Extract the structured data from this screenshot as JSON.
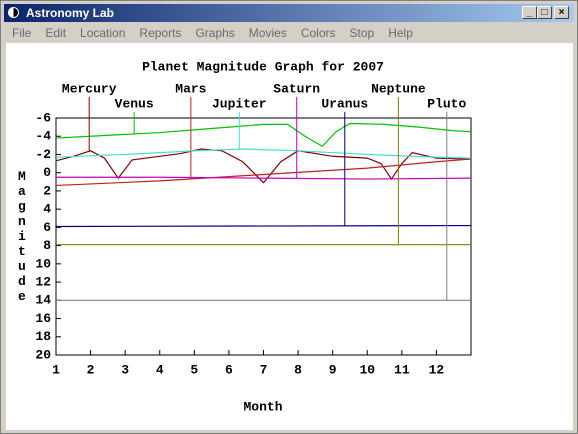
{
  "window": {
    "title": "Astronomy Lab",
    "menu": [
      "File",
      "Edit",
      "Location",
      "Reports",
      "Graphs",
      "Movies",
      "Colors",
      "Stop",
      "Help"
    ]
  },
  "chart_data": {
    "type": "line",
    "title": "Planet Magnitude Graph for 2007",
    "x_label": "Month",
    "y_label": "Magnitude",
    "xlim": [
      1,
      13
    ],
    "xticks": [
      1,
      2,
      3,
      4,
      5,
      6,
      7,
      8,
      9,
      10,
      11,
      12
    ],
    "ylim": [
      20,
      -6
    ],
    "yticks": [
      -6,
      -4,
      -2,
      0,
      2,
      4,
      6,
      8,
      10,
      12,
      14,
      16,
      18,
      20
    ],
    "series": [
      {
        "name": "Mercury",
        "color": "#800000",
        "marker_x": 1.96,
        "x": [
          1,
          1.5,
          2,
          2.4,
          2.8,
          3.2,
          4,
          4.6,
          5.2,
          5.8,
          6.4,
          7,
          7.5,
          8,
          9,
          10,
          10.4,
          10.7,
          11,
          11.3,
          12,
          13
        ],
        "values": [
          -1.3,
          -1.8,
          -2.4,
          -1.6,
          0.6,
          -1.4,
          -1.8,
          -2.1,
          -2.6,
          -2.4,
          -1.2,
          1.1,
          -1.2,
          -2.4,
          -1.8,
          -1.6,
          -1.0,
          0.7,
          -1.0,
          -2.2,
          -1.6,
          -1.5
        ]
      },
      {
        "name": "Venus",
        "color": "#00c000",
        "marker_x": 3.26,
        "x": [
          1,
          2,
          3,
          4,
          5,
          6,
          7,
          7.7,
          8.2,
          8.7,
          9.1,
          9.5,
          10.5,
          11.5,
          12.5,
          13
        ],
        "values": [
          -3.8,
          -4.0,
          -4.2,
          -4.4,
          -4.7,
          -5.0,
          -5.3,
          -5.3,
          -4.0,
          -2.9,
          -4.5,
          -5.4,
          -5.3,
          -5.0,
          -4.6,
          -4.5
        ]
      },
      {
        "name": "Mars",
        "color": "#c02020",
        "marker_x": 4.9,
        "x": [
          1,
          4,
          7,
          10,
          12,
          13
        ],
        "values": [
          1.4,
          0.9,
          0.2,
          -0.5,
          -1.2,
          -1.5
        ]
      },
      {
        "name": "Jupiter",
        "color": "#40e0d0",
        "marker_x": 6.3,
        "x": [
          1,
          3,
          5,
          6.4,
          8,
          10,
          12,
          13
        ],
        "values": [
          -1.7,
          -2.0,
          -2.4,
          -2.6,
          -2.4,
          -2.0,
          -1.7,
          -1.6
        ]
      },
      {
        "name": "Saturn",
        "color": "#c000c0",
        "marker_x": 7.96,
        "x": [
          1,
          4,
          7,
          10,
          13
        ],
        "values": [
          0.5,
          0.5,
          0.6,
          0.7,
          0.6
        ]
      },
      {
        "name": "Uranus",
        "color": "#000080",
        "marker_x": 9.35,
        "x": [
          1,
          13
        ],
        "values": [
          5.9,
          5.8
        ]
      },
      {
        "name": "Neptune",
        "color": "#808000",
        "marker_x": 10.9,
        "x": [
          1,
          13
        ],
        "values": [
          7.9,
          7.9
        ]
      },
      {
        "name": "Pluto",
        "color": "#808080",
        "marker_x": 12.3,
        "x": [
          1,
          13
        ],
        "values": [
          14.0,
          14.0
        ]
      }
    ]
  }
}
